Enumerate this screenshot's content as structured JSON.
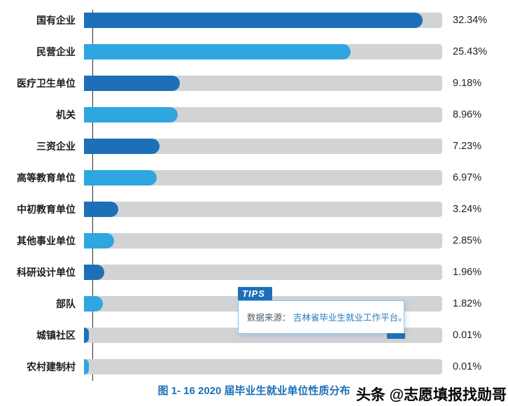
{
  "chart_data": {
    "type": "bar",
    "orientation": "horizontal",
    "title": "图 1- 16  2020 届毕业生就业单位性质分布",
    "categories": [
      "国有企业",
      "民营企业",
      "医疗卫生单位",
      "机关",
      "三资企业",
      "高等教育单位",
      "中初教育单位",
      "其他事业单位",
      "科研设计单位",
      "部队",
      "城镇社区",
      "农村建制村"
    ],
    "values": [
      32.34,
      25.43,
      9.18,
      8.96,
      7.23,
      6.97,
      3.24,
      2.85,
      1.96,
      1.82,
      0.01,
      0.01
    ],
    "value_labels": [
      "32.34%",
      "25.43%",
      "9.18%",
      "8.96%",
      "7.23%",
      "6.97%",
      "3.24%",
      "2.85%",
      "1.96%",
      "1.82%",
      "0.01%",
      "0.01%"
    ],
    "xlim": [
      0,
      34.2
    ],
    "grid": false,
    "legend": "none",
    "bar_colors_alternating": [
      "#1d70b7",
      "#2ea7e0"
    ],
    "track_color": "#d2d3d5"
  },
  "tips": {
    "label": "TIPS",
    "prefix": "数据来源：",
    "source": "吉林省毕业生就业工作平台。"
  },
  "watermark": "头条 @志愿填报找勋哥",
  "colors": {
    "accent_dark": "#1d70b7",
    "accent_light": "#2ea7e0",
    "track": "#d2d3d5",
    "caption": "#1d70b7"
  }
}
